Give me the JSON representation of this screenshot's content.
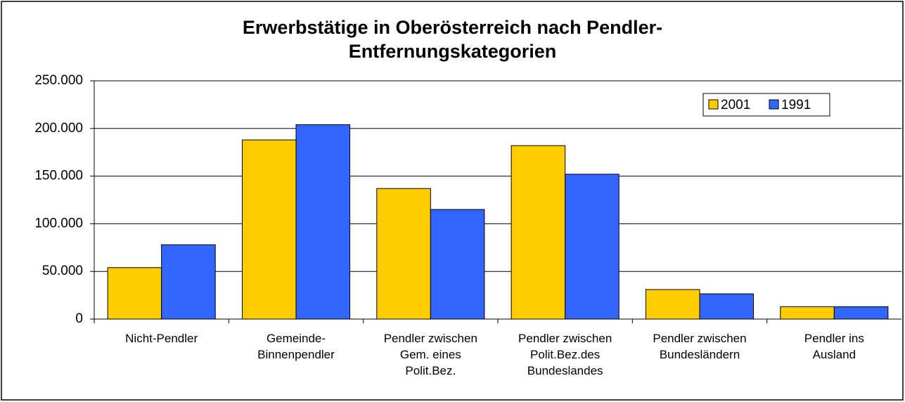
{
  "chart_data": {
    "type": "bar",
    "title": "Erwerbstätige in Oberösterreich nach Pendler-\nEntfernungskategorien",
    "categories": [
      "Nicht-Pendler",
      "Gemeinde-\nBinnenpendler",
      "Pendler zwischen\nGem. eines\nPolit.Bez.",
      "Pendler zwischen\nPolit.Bez.des\nBundeslandes",
      "Pendler zwischen\nBundesländern",
      "Pendler ins\nAusland"
    ],
    "series": [
      {
        "name": "2001",
        "color": "#ffcc00",
        "values": [
          54000,
          188000,
          137000,
          182000,
          31000,
          13000
        ]
      },
      {
        "name": "1991",
        "color": "#3366ff",
        "values": [
          78000,
          204000,
          115000,
          152000,
          26500,
          13000
        ]
      }
    ],
    "ylim": [
      0,
      250000
    ],
    "yticks": [
      0,
      {
        "value": 50000,
        "label": "50.000"
      },
      {
        "value": 100000,
        "label": "100.000"
      },
      {
        "value": 150000,
        "label": "150.000"
      },
      {
        "value": 200000,
        "label": "200.000"
      },
      {
        "value": 250000,
        "label": "250.000"
      }
    ],
    "grid": true,
    "legend": "upper right"
  }
}
